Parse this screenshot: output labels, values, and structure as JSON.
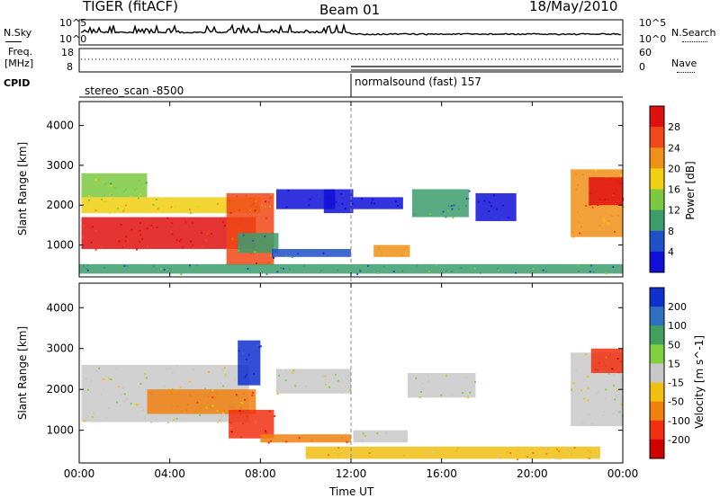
{
  "header": {
    "radar": "TIGER (fitACF)",
    "beam": "Beam 01",
    "date": "18/May/2010"
  },
  "strips": {
    "nsky_label": "N.Sky",
    "nsearch_label": "N.Search",
    "nsky_ticks": [
      "10^5",
      "10^0"
    ],
    "nsearch_ticks": [
      "10^5",
      "10^0"
    ],
    "freq_label_1": "Freq.",
    "freq_label_2": "[MHz]",
    "freq_ticks": [
      "18",
      "8"
    ],
    "nave_label": "Nave",
    "nave_ticks": [
      "60",
      "0"
    ],
    "cpid_label": "CPID",
    "cpid_mode_1": "stereo_scan -8500",
    "cpid_mode_2": "normalsound (fast) 157"
  },
  "x_axis": {
    "label": "Time UT",
    "ticks": [
      "00:00",
      "04:00",
      "08:00",
      "12:00",
      "16:00",
      "20:00",
      "00:00"
    ]
  },
  "chart_data": [
    {
      "type": "heatmap",
      "name": "power",
      "ylabel": "Slant Range [km]",
      "yticks": [
        "1000",
        "2000",
        "3000",
        "4000"
      ],
      "ylim": [
        200,
        4600
      ],
      "xlim_hours": [
        0,
        24
      ],
      "colorbar_label": "Power [dB]",
      "colorbar_ticks": [
        "4",
        "8",
        "12",
        "16",
        "20",
        "24",
        "28"
      ],
      "colors": [
        "#1010d8",
        "#2050c8",
        "#3c9c6c",
        "#7cc840",
        "#f0d010",
        "#f09018",
        "#f04818",
        "#e01010"
      ],
      "blobs": [
        {
          "x0": 0.1,
          "x1": 7.8,
          "y0": 900,
          "y1": 1700,
          "c": 7
        },
        {
          "x0": 0.1,
          "x1": 8.0,
          "y0": 1800,
          "y1": 2200,
          "c": 4
        },
        {
          "x0": 0.1,
          "x1": 3.0,
          "y0": 2200,
          "y1": 2800,
          "c": 3
        },
        {
          "x0": 6.5,
          "x1": 8.6,
          "y0": 500,
          "y1": 2300,
          "c": 6
        },
        {
          "x0": 7.0,
          "x1": 8.8,
          "y0": 800,
          "y1": 1300,
          "c": 2
        },
        {
          "x0": 8.5,
          "x1": 12.0,
          "y0": 700,
          "y1": 900,
          "c": 1
        },
        {
          "x0": 8.7,
          "x1": 11.3,
          "y0": 1900,
          "y1": 2400,
          "c": 0
        },
        {
          "x0": 10.8,
          "x1": 12.1,
          "y0": 1800,
          "y1": 2400,
          "c": 0
        },
        {
          "x0": 12.1,
          "x1": 14.3,
          "y0": 1900,
          "y1": 2200,
          "c": 0
        },
        {
          "x0": 13.0,
          "x1": 14.6,
          "y0": 700,
          "y1": 1000,
          "c": 5
        },
        {
          "x0": 14.7,
          "x1": 17.2,
          "y0": 1700,
          "y1": 2400,
          "c": 2
        },
        {
          "x0": 17.5,
          "x1": 19.3,
          "y0": 1600,
          "y1": 2300,
          "c": 0
        },
        {
          "x0": 21.7,
          "x1": 24.0,
          "y0": 1200,
          "y1": 2900,
          "c": 5
        },
        {
          "x0": 22.5,
          "x1": 24.0,
          "y0": 2000,
          "y1": 2700,
          "c": 7
        },
        {
          "x0": 0.0,
          "x1": 24.0,
          "y0": 280,
          "y1": 520,
          "c": 2
        }
      ]
    },
    {
      "type": "heatmap",
      "name": "velocity",
      "ylabel": "Slant Range [km]",
      "yticks": [
        "1000",
        "2000",
        "3000",
        "4000"
      ],
      "ylim": [
        200,
        4600
      ],
      "xlim_hours": [
        0,
        24
      ],
      "colorbar_label": "Velocity [m s^-1]",
      "colorbar_ticks": [
        "200",
        "100",
        "50",
        "15",
        "-15",
        "-50",
        "-100",
        "-200"
      ],
      "colors": [
        "#1030d0",
        "#3070c0",
        "#40a060",
        "#80d040",
        "#c8c8c8",
        "#f0c010",
        "#f08010",
        "#f03010",
        "#d00000"
      ],
      "blobs": [
        {
          "x0": 0.1,
          "x1": 7.5,
          "y0": 1200,
          "y1": 2600,
          "c": 4
        },
        {
          "x0": 3.0,
          "x1": 7.8,
          "y0": 1400,
          "y1": 2000,
          "c": 6
        },
        {
          "x0": 6.6,
          "x1": 8.6,
          "y0": 800,
          "y1": 1500,
          "c": 7
        },
        {
          "x0": 7.0,
          "x1": 8.0,
          "y0": 2100,
          "y1": 3200,
          "c": 0
        },
        {
          "x0": 8.0,
          "x1": 12.0,
          "y0": 700,
          "y1": 900,
          "c": 6
        },
        {
          "x0": 8.7,
          "x1": 12.0,
          "y0": 1900,
          "y1": 2500,
          "c": 4
        },
        {
          "x0": 12.1,
          "x1": 14.5,
          "y0": 700,
          "y1": 1000,
          "c": 4
        },
        {
          "x0": 14.5,
          "x1": 17.5,
          "y0": 1800,
          "y1": 2400,
          "c": 4
        },
        {
          "x0": 21.7,
          "x1": 24.0,
          "y0": 1100,
          "y1": 2900,
          "c": 4
        },
        {
          "x0": 22.6,
          "x1": 24.0,
          "y0": 2400,
          "y1": 3000,
          "c": 7
        },
        {
          "x0": 10.0,
          "x1": 23.0,
          "y0": 300,
          "y1": 600,
          "c": 5
        }
      ]
    }
  ]
}
